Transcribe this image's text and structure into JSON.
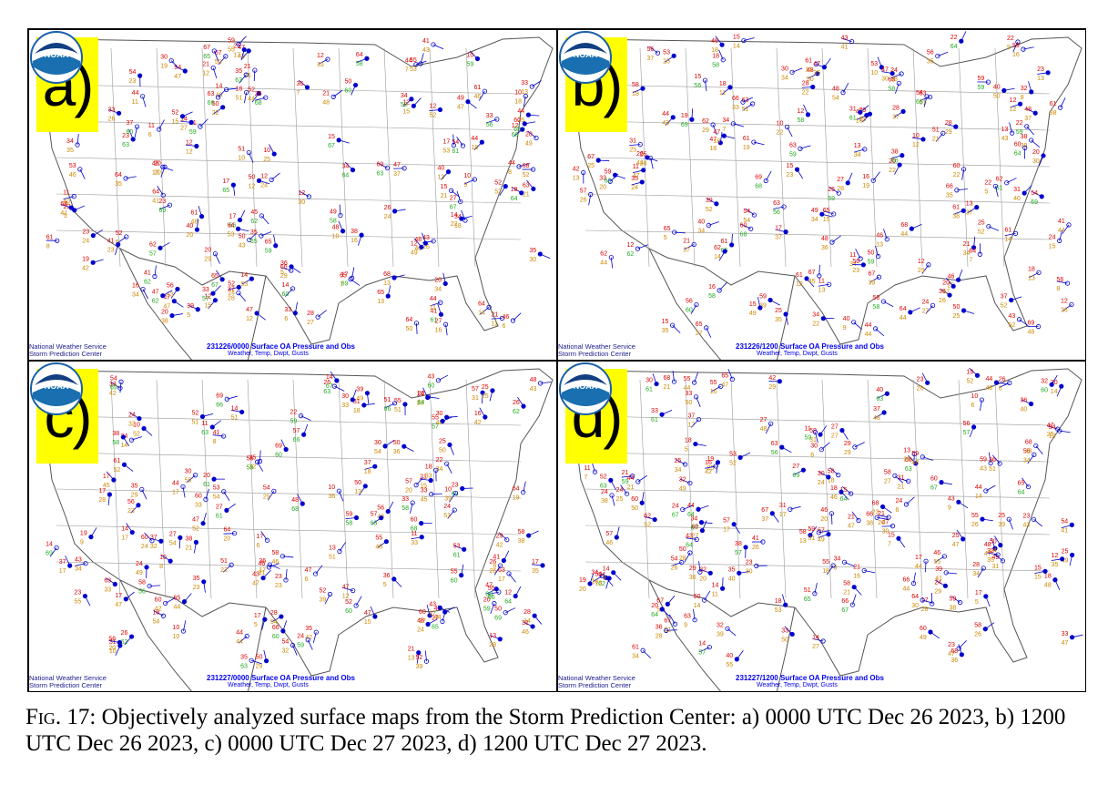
{
  "panels": [
    {
      "label": "a)",
      "title": "231226/0000 Surface OA Pressure and Obs",
      "subtitle": "Weather, Temp, Dwpt, Gusts"
    },
    {
      "label": "b)",
      "title": "231226/1200 Surface OA Pressure and Obs",
      "subtitle": "Weather, Temp, Dwpt, Gusts"
    },
    {
      "label": "c)",
      "title": "231227/0000 Surface OA Pressure and Obs",
      "subtitle": "Weather, Temp, Dwpt, Gusts"
    },
    {
      "label": "d)",
      "title": "231227/1200 Surface OA Pressure and Obs",
      "subtitle": "Weather, Temp, Dwpt, Gusts"
    }
  ],
  "logo": {
    "text": "NOAA",
    "credit_line1": "National Weather Service",
    "credit_line2": "Storm Prediction Center"
  },
  "caption": {
    "fig_label": "Fig. 17:",
    "text": "Objectively analyzed surface maps from the Storm Prediction Center: a) 0000 UTC Dec 26 2023, b) 1200 UTC Dec 26 2023, c) 0000 UTC Dec 27 2023, d) 1200 UTC Dec 27 2023."
  },
  "colors": {
    "temp": "#dd0000",
    "dewpoint": "#cc8800",
    "dewpoint_high": "#22aa22",
    "station": "#0000cc",
    "label_bg": "#ffff00",
    "border": "#555555"
  }
}
